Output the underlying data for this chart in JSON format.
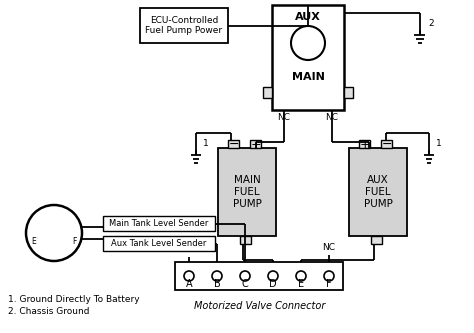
{
  "bg_color": "#ffffff",
  "line_color": "#000000",
  "box_fill": "#d3d3d3",
  "title": "Motorized Valve Connector",
  "ecu_label": "ECU-Controlled\nFuel Pump Power",
  "relay_aux_label": "AUX",
  "relay_main_label": "MAIN",
  "pump1_label": "MAIN\nFUEL\nPUMP",
  "pump2_label": "AUX\nFUEL\nPUMP",
  "sender1_label": "Main Tank Level Sender",
  "sender2_label": "Aux Tank Level Sender",
  "connector_labels": [
    "A",
    "B",
    "C",
    "D",
    "E",
    "F"
  ],
  "footnote1": "1. Ground Directly To Battery",
  "footnote2": "2. Chassis Ground"
}
